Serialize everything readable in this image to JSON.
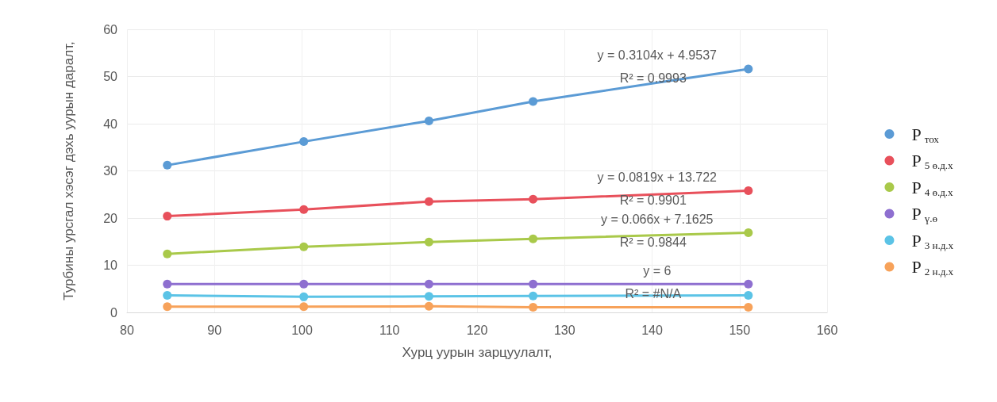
{
  "chart_data": {
    "type": "line",
    "xlabel": "Хурц уурын зарцуулалт,",
    "ylabel": "Турбины урсгал хэсэг дэхь уурын даралт,",
    "x": [
      84.6,
      100.2,
      114.5,
      126.4,
      151
    ],
    "xlim": [
      80,
      160
    ],
    "xticks": [
      80,
      90,
      100,
      110,
      120,
      130,
      140,
      150,
      160
    ],
    "ylim": [
      0,
      60
    ],
    "yticks": [
      0,
      10,
      20,
      30,
      40,
      50,
      60
    ],
    "grid": true,
    "legend": "right",
    "marker": "circle",
    "line_style": "solid",
    "series": [
      {
        "name": "P$_{тох}$",
        "color": "#5b9bd5",
        "values": [
          31.2,
          36.2,
          40.6,
          44.7,
          51.6
        ]
      },
      {
        "name": "P$_{5 ө.д.х}$",
        "color": "#e8505b",
        "values": [
          20.4,
          21.8,
          23.5,
          24.0,
          25.8
        ]
      },
      {
        "name": "P$_{4 ө.д.х}$",
        "color": "#a9c94a",
        "values": [
          12.4,
          13.9,
          14.9,
          15.6,
          16.9
        ]
      },
      {
        "name": "P$_{ү.ө}$",
        "color": "#8e6fd0",
        "values": [
          6,
          6,
          6,
          6,
          6
        ]
      },
      {
        "name": "P$_{3 н.д.х}$",
        "color": "#5bc3e6",
        "values": [
          3.6,
          3.3,
          3.4,
          3.5,
          3.6
        ]
      },
      {
        "name": "P$_{2 н.д.х}$",
        "color": "#f7a25a",
        "values": [
          1.2,
          1.2,
          1.3,
          1.1,
          1.1
        ]
      }
    ],
    "annotations": [
      "y = 0.3104x + 4.9537",
      "R² = 0.9993",
      "y = 0.0819x + 13.722",
      "R² = 0.9901",
      "y = 0.066x + 7.1625",
      "R² = 0.9844",
      "y = 6",
      "R² = #N/A"
    ]
  }
}
